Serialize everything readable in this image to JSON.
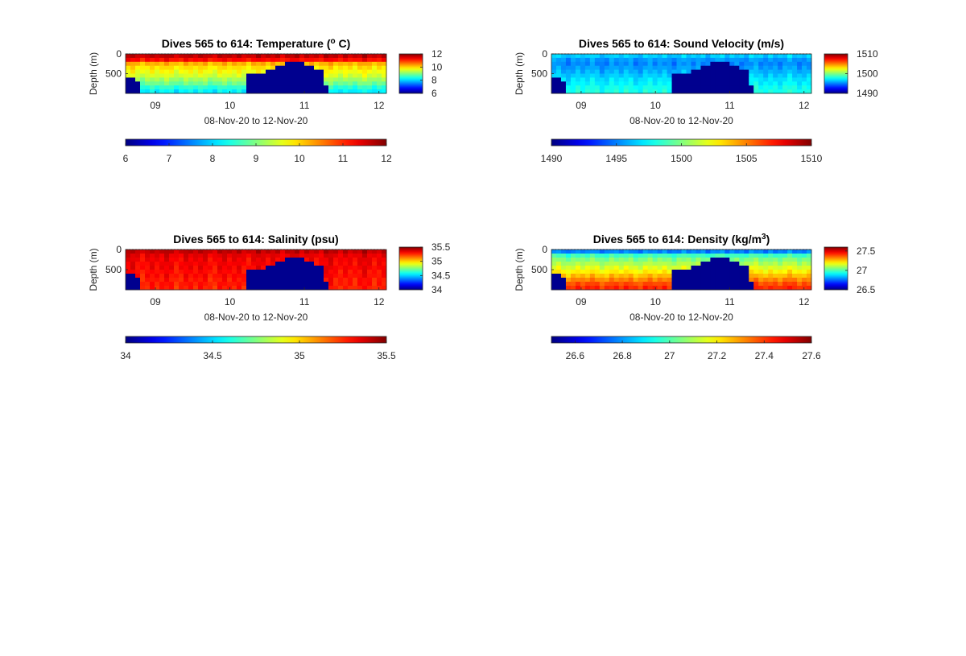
{
  "chart_data": [
    {
      "type": "heatmap",
      "title_main": "Dives 565 to 614: Temperature (",
      "title_sup": "o",
      "title_tail": " C)",
      "ylabel": "Depth (m)",
      "xlabel": "08-Nov-20 to 12-Nov-20",
      "xticks": [
        "09",
        "10",
        "11",
        "12"
      ],
      "x_tick_days": [
        9,
        10,
        11,
        12
      ],
      "xlim_days": [
        8.6,
        12.1
      ],
      "yticks": [
        "0",
        "500"
      ],
      "y_tick_values": [
        0,
        500
      ],
      "ylim": [
        0,
        1000
      ],
      "clim": [
        6,
        12
      ],
      "side_colorbar_ticks": [
        "12",
        "10",
        "8",
        "6"
      ],
      "side_colorbar_values": [
        12,
        10,
        8,
        6
      ],
      "bottom_colorbar_ticks": [
        "6",
        "7",
        "8",
        "9",
        "10",
        "11",
        "12"
      ],
      "bottom_colorbar_values": [
        6,
        7,
        8,
        9,
        10,
        11,
        12
      ],
      "profile_by_depth": [
        11.6,
        11.2,
        10.2,
        9.9,
        9.7,
        9.5,
        9.2,
        8.9,
        8.5,
        8.2
      ],
      "mask_value": 6,
      "mask_extra_levels": 0
    },
    {
      "type": "heatmap",
      "title_main": "Dives 565 to 614: Sound Velocity (m/s)",
      "title_sup": "",
      "title_tail": "",
      "ylabel": "Depth (m)",
      "xlabel": "08-Nov-20 to 12-Nov-20",
      "xticks": [
        "09",
        "10",
        "11",
        "12"
      ],
      "x_tick_days": [
        9,
        10,
        11,
        12
      ],
      "xlim_days": [
        8.6,
        12.1
      ],
      "yticks": [
        "0",
        "500"
      ],
      "y_tick_values": [
        0,
        500
      ],
      "ylim": [
        0,
        1000
      ],
      "clim": [
        1490,
        1510
      ],
      "side_colorbar_ticks": [
        "1510",
        "1500",
        "1490"
      ],
      "side_colorbar_values": [
        1510,
        1500,
        1490
      ],
      "bottom_colorbar_ticks": [
        "1490",
        "1495",
        "1500",
        "1505",
        "1510"
      ],
      "bottom_colorbar_values": [
        1490,
        1495,
        1500,
        1505,
        1510
      ],
      "profile_by_depth": [
        1496.5,
        1495.5,
        1495.2,
        1495.6,
        1496,
        1496.5,
        1497,
        1497.3,
        1497.8,
        1498
      ],
      "mask_value": 1490,
      "mask_extra_levels": 0
    },
    {
      "type": "heatmap",
      "title_main": "Dives 565 to 614: Salinity (psu)",
      "title_sup": "",
      "title_tail": "",
      "ylabel": "Depth (m)",
      "xlabel": "08-Nov-20 to 12-Nov-20",
      "xticks": [
        "09",
        "10",
        "11",
        "12"
      ],
      "x_tick_days": [
        9,
        10,
        11,
        12
      ],
      "xlim_days": [
        8.6,
        12.1
      ],
      "yticks": [
        "0",
        "500"
      ],
      "y_tick_values": [
        0,
        500
      ],
      "ylim": [
        0,
        1000
      ],
      "clim": [
        34,
        35.5
      ],
      "side_colorbar_ticks": [
        "35.5",
        "35",
        "34.5",
        "34"
      ],
      "side_colorbar_values": [
        35.5,
        35,
        34.5,
        34
      ],
      "bottom_colorbar_ticks": [
        "34",
        "34.5",
        "35",
        "35.5"
      ],
      "bottom_colorbar_values": [
        34,
        34.5,
        35,
        35.5
      ],
      "profile_by_depth": [
        35.4,
        35.35,
        35.33,
        35.32,
        35.32,
        35.3,
        35.3,
        35.28,
        35.28,
        35.27
      ],
      "mask_value": 34,
      "mask_extra_levels": 0
    },
    {
      "type": "heatmap",
      "title_main": "Dives 565 to 614: Density (kg/m",
      "title_sup": "3",
      "title_tail": ")",
      "ylabel": "Depth (m)",
      "xlabel": "08-Nov-20 to 12-Nov-20",
      "xticks": [
        "09",
        "10",
        "11",
        "12"
      ],
      "x_tick_days": [
        9,
        10,
        11,
        12
      ],
      "xlim_days": [
        8.6,
        12.1
      ],
      "yticks": [
        "0",
        "500"
      ],
      "y_tick_values": [
        0,
        500
      ],
      "ylim": [
        0,
        1000
      ],
      "clim": [
        26.5,
        27.6
      ],
      "side_colorbar_ticks": [
        "27.5",
        "27",
        "26.5"
      ],
      "side_colorbar_values": [
        27.5,
        27,
        26.5
      ],
      "bottom_colorbar_ticks": [
        "26.6",
        "26.8",
        "27",
        "27.2",
        "27.4",
        "27.6"
      ],
      "bottom_colorbar_values": [
        26.6,
        26.8,
        27,
        27.2,
        27.4,
        27.6
      ],
      "profile_by_depth": [
        26.78,
        26.98,
        27.05,
        27.1,
        27.15,
        27.2,
        27.26,
        27.32,
        27.38,
        27.42
      ],
      "mask_value": 26.5,
      "mask_extra_levels": 0.1
    }
  ],
  "shared": {
    "mask_color": "#00008f",
    "colormap": "jet"
  }
}
